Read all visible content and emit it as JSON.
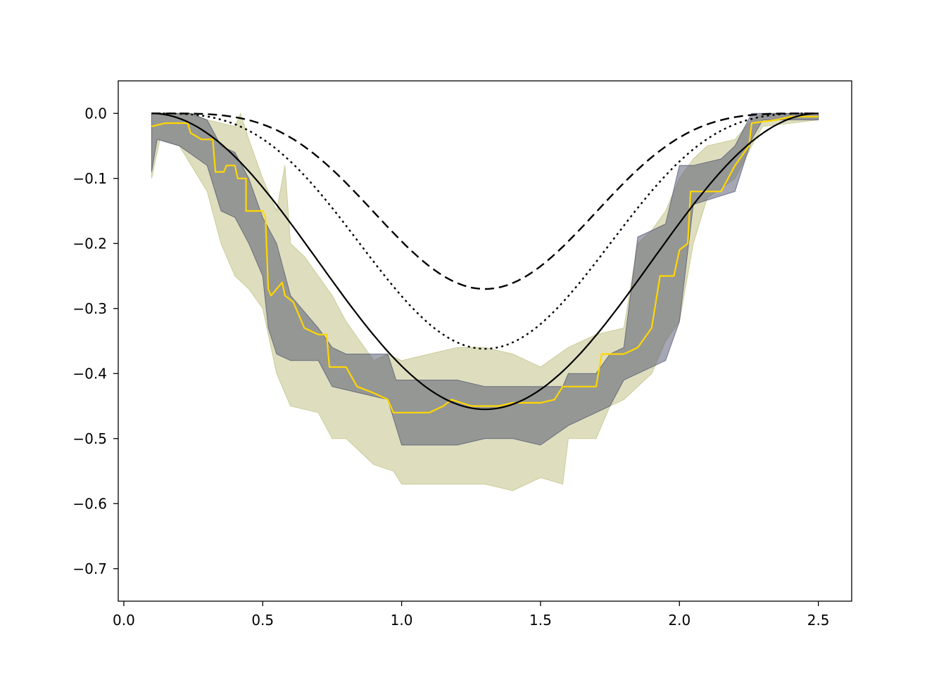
{
  "chart_data": {
    "type": "line",
    "title": "",
    "xlabel": "",
    "ylabel": "",
    "xlim": [
      -0.02,
      2.62
    ],
    "ylim": [
      -0.75,
      0.05
    ],
    "grid": false,
    "legend": "none",
    "x_ticks": [
      {
        "value": 0.0,
        "label": "0.0"
      },
      {
        "value": 0.5,
        "label": "0.5"
      },
      {
        "value": 1.0,
        "label": "1.0"
      },
      {
        "value": 1.5,
        "label": "1.5"
      },
      {
        "value": 2.0,
        "label": "2.0"
      },
      {
        "value": 2.5,
        "label": "2.5"
      }
    ],
    "y_ticks": [
      {
        "value": 0.0,
        "label": "0.0"
      },
      {
        "value": -0.1,
        "label": "−0.1"
      },
      {
        "value": -0.2,
        "label": "−0.2"
      },
      {
        "value": -0.3,
        "label": "−0.3"
      },
      {
        "value": -0.4,
        "label": "−0.4"
      },
      {
        "value": -0.5,
        "label": "−0.5"
      },
      {
        "value": -0.6,
        "label": "−0.6"
      },
      {
        "value": -0.7,
        "label": "−0.7"
      }
    ],
    "bands": [
      {
        "color": "#bdbd7e",
        "opacity": 0.5,
        "upper": [
          [
            0.1,
            0.0
          ],
          [
            0.24,
            0.0
          ],
          [
            0.3,
            -0.01
          ],
          [
            0.4,
            -0.02
          ],
          [
            0.42,
            0.0
          ],
          [
            0.45,
            -0.04
          ],
          [
            0.5,
            -0.1
          ],
          [
            0.55,
            -0.15
          ],
          [
            0.58,
            -0.08
          ],
          [
            0.6,
            -0.2
          ],
          [
            0.65,
            -0.22
          ],
          [
            0.7,
            -0.25
          ],
          [
            0.75,
            -0.28
          ],
          [
            0.8,
            -0.32
          ],
          [
            0.85,
            -0.35
          ],
          [
            0.9,
            -0.38
          ],
          [
            0.95,
            -0.37
          ],
          [
            1.0,
            -0.38
          ],
          [
            1.1,
            -0.37
          ],
          [
            1.2,
            -0.36
          ],
          [
            1.3,
            -0.36
          ],
          [
            1.4,
            -0.37
          ],
          [
            1.5,
            -0.39
          ],
          [
            1.6,
            -0.36
          ],
          [
            1.7,
            -0.34
          ],
          [
            1.8,
            -0.33
          ],
          [
            1.85,
            -0.2
          ],
          [
            1.9,
            -0.18
          ],
          [
            1.95,
            -0.15
          ],
          [
            2.0,
            -0.1
          ],
          [
            2.05,
            -0.07
          ],
          [
            2.1,
            -0.05
          ],
          [
            2.2,
            -0.04
          ],
          [
            2.26,
            -0.01
          ],
          [
            2.3,
            0.0
          ],
          [
            2.5,
            0.0
          ]
        ],
        "lower": [
          [
            0.1,
            -0.1
          ],
          [
            0.13,
            -0.04
          ],
          [
            0.2,
            -0.05
          ],
          [
            0.3,
            -0.12
          ],
          [
            0.35,
            -0.2
          ],
          [
            0.4,
            -0.25
          ],
          [
            0.45,
            -0.27
          ],
          [
            0.5,
            -0.3
          ],
          [
            0.55,
            -0.4
          ],
          [
            0.6,
            -0.45
          ],
          [
            0.7,
            -0.46
          ],
          [
            0.75,
            -0.5
          ],
          [
            0.8,
            -0.5
          ],
          [
            0.9,
            -0.54
          ],
          [
            0.97,
            -0.55
          ],
          [
            1.0,
            -0.57
          ],
          [
            1.2,
            -0.57
          ],
          [
            1.3,
            -0.57
          ],
          [
            1.4,
            -0.58
          ],
          [
            1.5,
            -0.56
          ],
          [
            1.58,
            -0.57
          ],
          [
            1.6,
            -0.5
          ],
          [
            1.7,
            -0.5
          ],
          [
            1.75,
            -0.45
          ],
          [
            1.8,
            -0.44
          ],
          [
            1.9,
            -0.4
          ],
          [
            1.95,
            -0.35
          ],
          [
            2.0,
            -0.32
          ],
          [
            2.05,
            -0.2
          ],
          [
            2.1,
            -0.13
          ],
          [
            2.2,
            -0.1
          ],
          [
            2.26,
            -0.05
          ],
          [
            2.3,
            -0.02
          ],
          [
            2.5,
            -0.01
          ]
        ]
      },
      {
        "color": "#4c4f6c",
        "opacity": 0.5,
        "upper": [
          [
            0.1,
            0.0
          ],
          [
            0.24,
            0.0
          ],
          [
            0.3,
            -0.01
          ],
          [
            0.35,
            -0.05
          ],
          [
            0.4,
            -0.06
          ],
          [
            0.45,
            -0.1
          ],
          [
            0.5,
            -0.16
          ],
          [
            0.55,
            -0.2
          ],
          [
            0.6,
            -0.28
          ],
          [
            0.7,
            -0.33
          ],
          [
            0.75,
            -0.36
          ],
          [
            0.8,
            -0.37
          ],
          [
            0.95,
            -0.37
          ],
          [
            0.98,
            -0.41
          ],
          [
            1.1,
            -0.41
          ],
          [
            1.2,
            -0.41
          ],
          [
            1.3,
            -0.42
          ],
          [
            1.4,
            -0.42
          ],
          [
            1.5,
            -0.42
          ],
          [
            1.58,
            -0.42
          ],
          [
            1.6,
            -0.4
          ],
          [
            1.7,
            -0.4
          ],
          [
            1.75,
            -0.37
          ],
          [
            1.8,
            -0.36
          ],
          [
            1.85,
            -0.19
          ],
          [
            1.9,
            -0.18
          ],
          [
            1.95,
            -0.17
          ],
          [
            2.0,
            -0.08
          ],
          [
            2.05,
            -0.08
          ],
          [
            2.15,
            -0.07
          ],
          [
            2.2,
            -0.05
          ],
          [
            2.26,
            0.0
          ],
          [
            2.3,
            0.0
          ],
          [
            2.5,
            0.0
          ]
        ],
        "lower": [
          [
            0.1,
            -0.09
          ],
          [
            0.12,
            -0.04
          ],
          [
            0.2,
            -0.05
          ],
          [
            0.3,
            -0.08
          ],
          [
            0.35,
            -0.15
          ],
          [
            0.4,
            -0.16
          ],
          [
            0.45,
            -0.2
          ],
          [
            0.5,
            -0.25
          ],
          [
            0.52,
            -0.33
          ],
          [
            0.55,
            -0.37
          ],
          [
            0.6,
            -0.38
          ],
          [
            0.7,
            -0.38
          ],
          [
            0.75,
            -0.42
          ],
          [
            0.85,
            -0.43
          ],
          [
            0.95,
            -0.44
          ],
          [
            1.0,
            -0.51
          ],
          [
            1.2,
            -0.51
          ],
          [
            1.3,
            -0.5
          ],
          [
            1.4,
            -0.5
          ],
          [
            1.5,
            -0.51
          ],
          [
            1.6,
            -0.48
          ],
          [
            1.7,
            -0.46
          ],
          [
            1.75,
            -0.45
          ],
          [
            1.8,
            -0.41
          ],
          [
            1.85,
            -0.4
          ],
          [
            1.95,
            -0.38
          ],
          [
            2.0,
            -0.32
          ],
          [
            2.05,
            -0.14
          ],
          [
            2.2,
            -0.12
          ],
          [
            2.26,
            -0.04
          ],
          [
            2.3,
            -0.01
          ],
          [
            2.5,
            -0.01
          ]
        ]
      }
    ],
    "series": [
      {
        "color": "#ffd700",
        "dash": "solid",
        "width": 2.2,
        "points": [
          [
            0.1,
            -0.02
          ],
          [
            0.15,
            -0.015
          ],
          [
            0.23,
            -0.015
          ],
          [
            0.24,
            -0.03
          ],
          [
            0.28,
            -0.04
          ],
          [
            0.32,
            -0.04
          ],
          [
            0.33,
            -0.09
          ],
          [
            0.36,
            -0.09
          ],
          [
            0.37,
            -0.08
          ],
          [
            0.4,
            -0.08
          ],
          [
            0.41,
            -0.1
          ],
          [
            0.44,
            -0.1
          ],
          [
            0.44,
            -0.15
          ],
          [
            0.5,
            -0.15
          ],
          [
            0.51,
            -0.16
          ],
          [
            0.52,
            -0.27
          ],
          [
            0.53,
            -0.28
          ],
          [
            0.55,
            -0.27
          ],
          [
            0.57,
            -0.26
          ],
          [
            0.58,
            -0.28
          ],
          [
            0.61,
            -0.29
          ],
          [
            0.63,
            -0.31
          ],
          [
            0.65,
            -0.33
          ],
          [
            0.7,
            -0.34
          ],
          [
            0.73,
            -0.34
          ],
          [
            0.74,
            -0.39
          ],
          [
            0.77,
            -0.39
          ],
          [
            0.8,
            -0.39
          ],
          [
            0.84,
            -0.42
          ],
          [
            0.9,
            -0.43
          ],
          [
            0.95,
            -0.44
          ],
          [
            0.97,
            -0.46
          ],
          [
            1.05,
            -0.46
          ],
          [
            1.1,
            -0.46
          ],
          [
            1.15,
            -0.45
          ],
          [
            1.18,
            -0.44
          ],
          [
            1.25,
            -0.45
          ],
          [
            1.3,
            -0.45
          ],
          [
            1.35,
            -0.45
          ],
          [
            1.4,
            -0.445
          ],
          [
            1.45,
            -0.445
          ],
          [
            1.5,
            -0.445
          ],
          [
            1.55,
            -0.44
          ],
          [
            1.58,
            -0.42
          ],
          [
            1.65,
            -0.42
          ],
          [
            1.7,
            -0.42
          ],
          [
            1.72,
            -0.37
          ],
          [
            1.8,
            -0.37
          ],
          [
            1.85,
            -0.36
          ],
          [
            1.9,
            -0.33
          ],
          [
            1.93,
            -0.25
          ],
          [
            1.98,
            -0.25
          ],
          [
            2.0,
            -0.21
          ],
          [
            2.03,
            -0.2
          ],
          [
            2.04,
            -0.12
          ],
          [
            2.15,
            -0.12
          ],
          [
            2.2,
            -0.08
          ],
          [
            2.25,
            -0.05
          ],
          [
            2.26,
            -0.015
          ],
          [
            2.35,
            -0.01
          ],
          [
            2.4,
            -0.005
          ],
          [
            2.5,
            -0.005
          ]
        ]
      },
      {
        "color": "#000000",
        "dash": "solid",
        "width": 2.2,
        "function": {
          "kind": "cosine_bowl",
          "x0": 0.1,
          "x1": 2.5,
          "depth": -0.455,
          "power": 1.0,
          "steps": 160
        }
      },
      {
        "color": "#000000",
        "dash": "dotted",
        "width": 2.4,
        "function": {
          "kind": "cosine_bowl",
          "x0": 0.1,
          "x1": 2.5,
          "depth": -0.362,
          "power": 1.6,
          "steps": 160
        }
      },
      {
        "color": "#000000",
        "dash": "dashed",
        "width": 2.4,
        "function": {
          "kind": "cosine_bowl",
          "x0": 0.1,
          "x1": 2.5,
          "depth": -0.27,
          "power": 2.0,
          "steps": 160
        }
      }
    ]
  }
}
